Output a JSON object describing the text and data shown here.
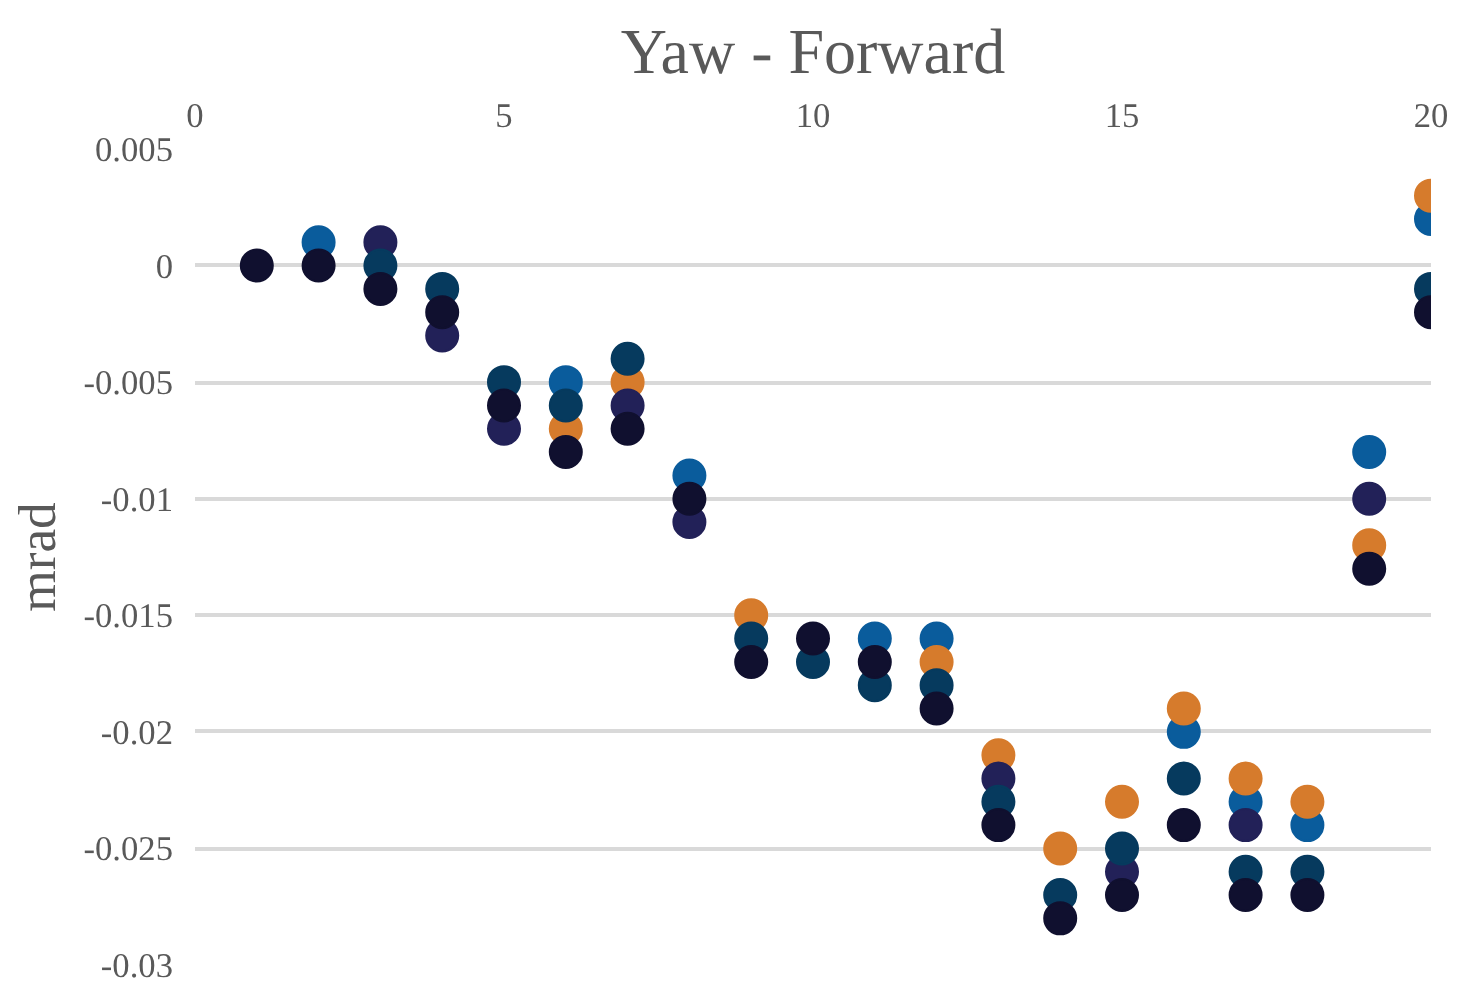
{
  "chart_data": {
    "type": "scatter",
    "title": "Yaw - Forward",
    "ylabel": "mrad",
    "marker": "circle",
    "grid": "y",
    "x": [
      1,
      2,
      3,
      4,
      5,
      6,
      7,
      8,
      9,
      10,
      11,
      12,
      13,
      14,
      15,
      16,
      17,
      18,
      19,
      20
    ],
    "xlim": [
      0,
      20
    ],
    "xticks": [
      0,
      5,
      10,
      15,
      20
    ],
    "ylim": [
      -0.03,
      0.005
    ],
    "yticks": [
      0.005,
      0,
      -0.005,
      -0.01,
      -0.015,
      -0.02,
      -0.025,
      -0.03
    ],
    "series": [
      {
        "color": "#0a5c9c",
        "values": [
          null,
          0.001,
          null,
          null,
          null,
          -0.005,
          null,
          -0.009,
          null,
          null,
          -0.016,
          -0.016,
          null,
          null,
          null,
          -0.02,
          -0.023,
          -0.024,
          -0.008,
          0.002
        ]
      },
      {
        "color": "#d67b2c",
        "values": [
          null,
          null,
          null,
          null,
          null,
          -0.007,
          -0.005,
          null,
          -0.015,
          null,
          null,
          -0.017,
          -0.021,
          -0.025,
          -0.023,
          -0.019,
          -0.022,
          -0.023,
          -0.012,
          0.003
        ]
      },
      {
        "color": "#222158",
        "values": [
          null,
          null,
          0.001,
          -0.003,
          -0.007,
          null,
          -0.006,
          -0.011,
          null,
          null,
          null,
          null,
          -0.022,
          null,
          -0.026,
          null,
          -0.024,
          null,
          -0.01,
          null
        ]
      },
      {
        "color": "#063a5e",
        "values": [
          null,
          null,
          0,
          -0.001,
          -0.005,
          -0.006,
          -0.004,
          null,
          -0.016,
          -0.017,
          -0.018,
          -0.018,
          -0.023,
          -0.027,
          -0.025,
          -0.022,
          -0.026,
          -0.026,
          null,
          -0.001
        ]
      },
      {
        "color": "#10102f",
        "values": [
          0,
          0,
          -0.001,
          -0.002,
          -0.006,
          -0.008,
          -0.007,
          -0.01,
          -0.017,
          -0.016,
          -0.017,
          -0.019,
          -0.024,
          -0.028,
          -0.027,
          -0.024,
          -0.027,
          -0.027,
          -0.013,
          -0.002
        ]
      }
    ]
  }
}
